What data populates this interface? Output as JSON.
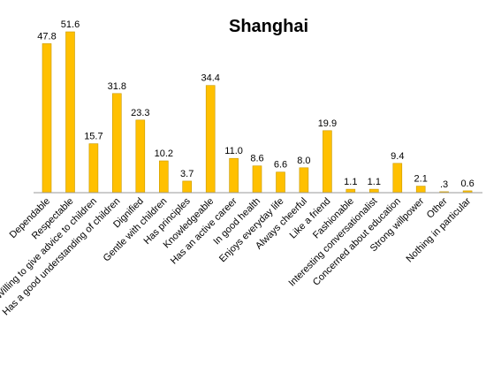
{
  "chart_data": {
    "type": "bar",
    "title": "Shanghai",
    "categories": [
      "Dependable",
      "Respectable",
      "Willing to give advice to children",
      "Has a good understanding of children",
      "Dignified",
      "Gentle with children",
      "Has principles",
      "Knowledgeable",
      "Has an active career",
      "In good health",
      "Enjoys everyday life",
      "Always cheerful",
      "Like a friend",
      "Fashionable",
      "Interesting conversationalist",
      "Concerned about education",
      "Strong willpower",
      "Other",
      "Nothing in particular"
    ],
    "values": [
      47.8,
      51.6,
      15.7,
      31.8,
      23.3,
      10.2,
      3.7,
      34.4,
      11.0,
      8.6,
      6.6,
      8.0,
      19.9,
      1.1,
      1.1,
      9.4,
      2.1,
      0.3,
      0.6
    ],
    "value_labels": [
      "47.8",
      "51.6",
      "15.7",
      "31.8",
      "23.3",
      "10.2",
      "3.7",
      "34.4",
      "11.0",
      "8.6",
      "6.6",
      "8.0",
      "19.9",
      "1.1",
      "1.1",
      "9.4",
      "2.1",
      ".3",
      "0.6"
    ],
    "xlabel": "",
    "ylabel": "",
    "ylim": [
      0,
      55
    ],
    "grid": false,
    "legend": "none",
    "colors": {
      "bar_fill": "#FFC000",
      "bar_stroke": "#C89A00",
      "axis": "#999999"
    }
  }
}
